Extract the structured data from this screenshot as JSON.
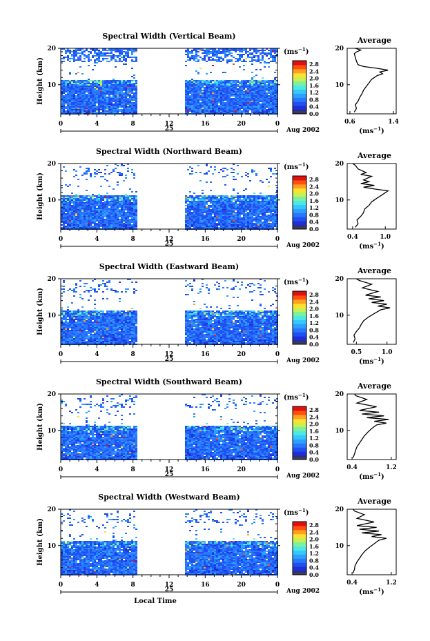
{
  "chart_data": [
    {
      "type": "heatmap",
      "title": "Spectral Width (Vertical Beam)",
      "ylabel": "Height (km)",
      "yticks": [
        "20",
        "10"
      ],
      "xticks": [
        "0",
        "4",
        "8",
        "12",
        "16",
        "20",
        "0"
      ],
      "day_label": "25",
      "date_label": "Aug 2002",
      "colorbar": {
        "unit": "(ms",
        "unit_sup": "−1",
        "unit_close": ")",
        "ticks": [
          "2.8",
          "2.4",
          "2.0",
          "1.6",
          "1.2",
          "0.8",
          "0.4",
          "0.0"
        ]
      },
      "ylim": [
        2,
        20
      ],
      "xlim": [
        0,
        24
      ],
      "data_gap_hours": [
        8.7,
        13.7
      ],
      "profile": {
        "title": "Average",
        "unit": "(ms",
        "unit_sup": "−1",
        "unit_close": ")",
        "xticks": [
          "0.6",
          "1.4"
        ],
        "xtick_values": [
          0.6,
          1.4
        ],
        "xlim": [
          0.55,
          1.45
        ],
        "yticks": [
          "20",
          "10"
        ],
        "points": [
          [
            0.68,
            2.5
          ],
          [
            0.72,
            3.5
          ],
          [
            0.7,
            4.5
          ],
          [
            0.75,
            5.5
          ],
          [
            0.78,
            6.5
          ],
          [
            0.82,
            7.5
          ],
          [
            0.85,
            8.5
          ],
          [
            0.9,
            9.5
          ],
          [
            0.95,
            10.5
          ],
          [
            1.0,
            11.5
          ],
          [
            1.1,
            12.5
          ],
          [
            1.2,
            13
          ],
          [
            1.15,
            13.5
          ],
          [
            1.3,
            14
          ],
          [
            1.1,
            14.5
          ],
          [
            0.85,
            15
          ],
          [
            0.75,
            15.5
          ],
          [
            0.72,
            16.5
          ],
          [
            0.7,
            17.5
          ],
          [
            0.68,
            18.5
          ],
          [
            0.72,
            19
          ],
          [
            0.8,
            19.5
          ],
          [
            0.7,
            20
          ]
        ]
      }
    },
    {
      "type": "heatmap",
      "title": "Spectral Width (Northward Beam)",
      "ylabel": "Height (km)",
      "yticks": [
        "20",
        "10"
      ],
      "xticks": [
        "0",
        "4",
        "8",
        "12",
        "16",
        "20",
        "0"
      ],
      "day_label": "25",
      "date_label": "Aug 2002",
      "colorbar": {
        "unit": "(ms",
        "unit_sup": "−1",
        "unit_close": ")",
        "ticks": [
          "2.8",
          "2.4",
          "2.0",
          "1.6",
          "1.2",
          "0.8",
          "0.4",
          "0.0"
        ]
      },
      "ylim": [
        2,
        20
      ],
      "xlim": [
        0,
        24
      ],
      "data_gap_hours": [
        8.7,
        13.7
      ],
      "profile": {
        "title": "Average",
        "unit": "(ms",
        "unit_sup": "−1",
        "unit_close": ")",
        "xticks": [
          "0.4",
          "1.0"
        ],
        "xtick_values": [
          0.4,
          1.0
        ],
        "xlim": [
          0.3,
          1.2
        ],
        "yticks": [
          "20",
          "10"
        ],
        "points": [
          [
            0.45,
            2.5
          ],
          [
            0.5,
            3.5
          ],
          [
            0.48,
            4.5
          ],
          [
            0.55,
            5.5
          ],
          [
            0.6,
            6.5
          ],
          [
            0.62,
            7.5
          ],
          [
            0.7,
            8.5
          ],
          [
            0.75,
            9.5
          ],
          [
            0.85,
            10.5
          ],
          [
            0.95,
            11.5
          ],
          [
            1.05,
            12.5
          ],
          [
            0.8,
            13
          ],
          [
            0.6,
            13.5
          ],
          [
            0.8,
            14
          ],
          [
            0.55,
            14.5
          ],
          [
            0.7,
            15
          ],
          [
            0.6,
            15.5
          ],
          [
            0.75,
            16.5
          ],
          [
            0.55,
            17
          ],
          [
            0.65,
            17.5
          ],
          [
            0.5,
            18.5
          ],
          [
            0.45,
            19.5
          ],
          [
            0.4,
            20
          ]
        ]
      }
    },
    {
      "type": "heatmap",
      "title": "Spectral Width (Eastward Beam)",
      "ylabel": "Height (km)",
      "yticks": [
        "20",
        "10"
      ],
      "xticks": [
        "0",
        "4",
        "8",
        "12",
        "16",
        "20",
        "0"
      ],
      "day_label": "25",
      "date_label": "Aug 2002",
      "colorbar": {
        "unit": "(ms",
        "unit_sup": "−1",
        "unit_close": ")",
        "ticks": [
          "2.8",
          "2.4",
          "2.0",
          "1.6",
          "1.2",
          "0.8",
          "0.4",
          "0.0"
        ]
      },
      "ylim": [
        2,
        20
      ],
      "xlim": [
        0,
        24
      ],
      "data_gap_hours": [
        8.7,
        13.7
      ],
      "profile": {
        "title": "Average",
        "unit": "(ms",
        "unit_sup": "−1",
        "unit_close": ")",
        "xticks": [
          "0.5",
          "1.0"
        ],
        "xtick_values": [
          0.5,
          1.0
        ],
        "xlim": [
          0.35,
          1.15
        ],
        "yticks": [
          "20",
          "10"
        ],
        "points": [
          [
            0.45,
            2.5
          ],
          [
            0.48,
            3.5
          ],
          [
            0.46,
            4.5
          ],
          [
            0.5,
            5.5
          ],
          [
            0.55,
            6.5
          ],
          [
            0.58,
            7.5
          ],
          [
            0.62,
            8.5
          ],
          [
            0.7,
            9.5
          ],
          [
            0.8,
            10.5
          ],
          [
            0.9,
            11.5
          ],
          [
            1.05,
            12
          ],
          [
            0.85,
            12.5
          ],
          [
            1.0,
            13
          ],
          [
            0.75,
            13.5
          ],
          [
            0.95,
            14
          ],
          [
            0.7,
            14.5
          ],
          [
            0.9,
            15
          ],
          [
            0.65,
            15.5
          ],
          [
            0.85,
            16.5
          ],
          [
            0.6,
            17.5
          ],
          [
            0.75,
            18.5
          ],
          [
            0.55,
            19.5
          ],
          [
            0.5,
            20
          ]
        ]
      }
    },
    {
      "type": "heatmap",
      "title": "Spectral Width (Southward Beam)",
      "ylabel": "Height (km)",
      "yticks": [
        "20",
        "10"
      ],
      "xticks": [
        "0",
        "4",
        "8",
        "12",
        "16",
        "20",
        "0"
      ],
      "day_label": "25",
      "date_label": "Aug 2002",
      "colorbar": {
        "unit": "(ms",
        "unit_sup": "−1",
        "unit_close": ")",
        "ticks": [
          "2.8",
          "2.4",
          "2.0",
          "1.6",
          "1.2",
          "0.8",
          "0.4",
          "0.0"
        ]
      },
      "ylim": [
        2,
        20
      ],
      "xlim": [
        0,
        24
      ],
      "data_gap_hours": [
        8.7,
        13.7
      ],
      "profile": {
        "title": "Average",
        "unit": "(ms",
        "unit_sup": "−1",
        "unit_close": ")",
        "xticks": [
          "0.4",
          "1.2"
        ],
        "xtick_values": [
          0.4,
          1.2
        ],
        "xlim": [
          0.3,
          1.3
        ],
        "yticks": [
          "20",
          "10"
        ],
        "points": [
          [
            0.42,
            2.5
          ],
          [
            0.45,
            3.5
          ],
          [
            0.47,
            4.5
          ],
          [
            0.5,
            5.5
          ],
          [
            0.55,
            6.5
          ],
          [
            0.6,
            7.5
          ],
          [
            0.65,
            8.5
          ],
          [
            0.72,
            9.5
          ],
          [
            0.8,
            10.5
          ],
          [
            0.9,
            11.5
          ],
          [
            1.1,
            12
          ],
          [
            0.85,
            12.5
          ],
          [
            1.15,
            13
          ],
          [
            0.7,
            13.5
          ],
          [
            1.05,
            14
          ],
          [
            0.6,
            14.5
          ],
          [
            0.95,
            15
          ],
          [
            0.55,
            15.5
          ],
          [
            0.9,
            16.5
          ],
          [
            0.5,
            17.5
          ],
          [
            0.7,
            18.5
          ],
          [
            0.48,
            19.5
          ],
          [
            0.45,
            20
          ]
        ]
      }
    },
    {
      "type": "heatmap",
      "title": "Spectral Width (Westward Beam)",
      "ylabel": "Height (km)",
      "yticks": [
        "20",
        "10"
      ],
      "xticks": [
        "0",
        "4",
        "8",
        "12",
        "16",
        "20",
        "0"
      ],
      "day_label": "25",
      "date_label": "Aug 2002",
      "xlabel": "Local Time",
      "colorbar": {
        "unit": "(ms",
        "unit_sup": "−1",
        "unit_close": ")",
        "ticks": [
          "2.8",
          "2.4",
          "2.0",
          "1.6",
          "1.2",
          "0.8",
          "0.4",
          "0.0"
        ]
      },
      "ylim": [
        2,
        20
      ],
      "xlim": [
        0,
        24
      ],
      "data_gap_hours": [
        8.7,
        13.7
      ],
      "profile": {
        "title": "Average",
        "unit": "(ms",
        "unit_sup": "−1",
        "unit_close": ")",
        "xticks": [
          "0.4",
          "1.2"
        ],
        "xtick_values": [
          0.4,
          1.2
        ],
        "xlim": [
          0.3,
          1.3
        ],
        "yticks": [
          "20",
          "10"
        ],
        "points": [
          [
            0.42,
            2.5
          ],
          [
            0.45,
            3.5
          ],
          [
            0.46,
            4.5
          ],
          [
            0.5,
            5.5
          ],
          [
            0.55,
            6.5
          ],
          [
            0.6,
            7.5
          ],
          [
            0.66,
            8.5
          ],
          [
            0.75,
            9.5
          ],
          [
            0.85,
            10.5
          ],
          [
            0.95,
            11.5
          ],
          [
            1.1,
            12
          ],
          [
            0.8,
            12.5
          ],
          [
            1.0,
            13
          ],
          [
            0.6,
            13.5
          ],
          [
            0.95,
            14
          ],
          [
            0.55,
            14.5
          ],
          [
            0.9,
            15
          ],
          [
            0.5,
            15.5
          ],
          [
            0.85,
            16.5
          ],
          [
            0.5,
            17.5
          ],
          [
            0.65,
            18.5
          ],
          [
            0.45,
            19.5
          ],
          [
            0.42,
            20
          ]
        ]
      }
    }
  ]
}
